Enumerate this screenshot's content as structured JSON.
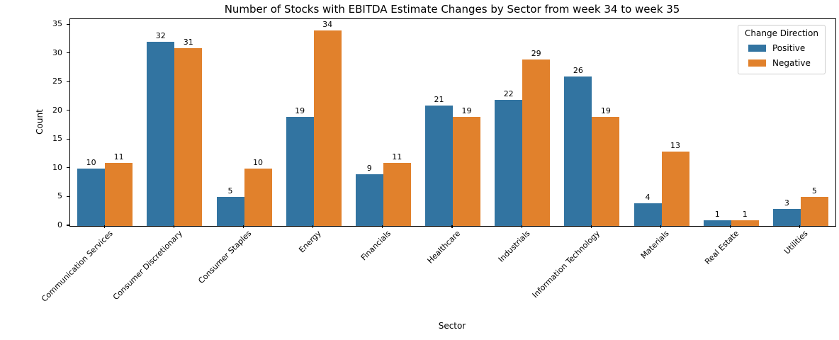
{
  "chart_data": {
    "type": "bar",
    "title": "Number of Stocks with EBITDA Estimate Changes by Sector from week 34 to week 35",
    "xlabel": "Sector",
    "ylabel": "Count",
    "categories": [
      "Communication Services",
      "Consumer Discretionary",
      "Consumer Staples",
      "Energy",
      "Financials",
      "Healthcare",
      "Industrials",
      "Information Technology",
      "Materials",
      "Real Estate",
      "Utilities"
    ],
    "series": [
      {
        "name": "Positive",
        "color": "#3274a1",
        "values": [
          10,
          32,
          5,
          19,
          9,
          21,
          22,
          26,
          4,
          1,
          3
        ]
      },
      {
        "name": "Negative",
        "color": "#e1812c",
        "values": [
          11,
          31,
          10,
          34,
          11,
          19,
          29,
          19,
          13,
          1,
          5
        ]
      }
    ],
    "bar_value_labels": true,
    "yticks": [
      0,
      5,
      10,
      15,
      20,
      25,
      30,
      35
    ],
    "ylim": [
      0,
      36
    ],
    "grid": false,
    "legend": {
      "title": "Change Direction",
      "position": "upper right"
    }
  }
}
